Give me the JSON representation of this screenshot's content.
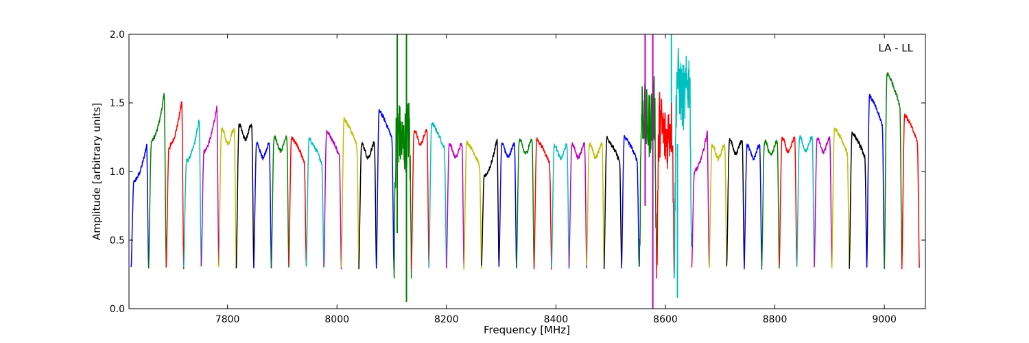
{
  "chart_data": {
    "type": "line",
    "title": "",
    "annotation": "LA - LL",
    "xlabel": "Frequency [MHz]",
    "ylabel": "Amplitude [arbitrary units]",
    "xlim": [
      7620,
      9075
    ],
    "ylim": [
      0.0,
      2.0
    ],
    "xticks": [
      7800,
      8000,
      8200,
      8400,
      8600,
      8800,
      9000
    ],
    "xtick_labels": [
      "7800",
      "8000",
      "8200",
      "8400",
      "8600",
      "8800",
      "9000"
    ],
    "yticks": [
      0.0,
      0.5,
      1.0,
      1.5,
      2.0
    ],
    "ytick_labels": [
      "0.0",
      "0.5",
      "1.0",
      "1.5",
      "2.0"
    ],
    "grid": false,
    "legend": "none",
    "colors": [
      "#0000ff",
      "#007f00",
      "#ff0000",
      "#00bfbf",
      "#bf00bf",
      "#bfbf00",
      "#000000"
    ],
    "channel_width_mhz": 32,
    "first_channel_start_mhz": 7624,
    "channels": [
      {
        "start": 7624,
        "peak": 1.28,
        "shape": "rising"
      },
      {
        "start": 7656,
        "peak": 1.68,
        "shape": "rising"
      },
      {
        "start": 7688,
        "peak": 1.62,
        "shape": "rising"
      },
      {
        "start": 7720,
        "peak": 1.48,
        "shape": "rising"
      },
      {
        "start": 7752,
        "peak": 1.58,
        "shape": "rising"
      },
      {
        "start": 7784,
        "peak": 1.31,
        "shape": "flat"
      },
      {
        "start": 7816,
        "peak": 1.34,
        "shape": "flat"
      },
      {
        "start": 7848,
        "peak": 1.2,
        "shape": "flat"
      },
      {
        "start": 7880,
        "peak": 1.25,
        "shape": "flat"
      },
      {
        "start": 7912,
        "peak": 1.26,
        "shape": "falling"
      },
      {
        "start": 7944,
        "peak": 1.25,
        "shape": "falling"
      },
      {
        "start": 7976,
        "peak": 1.31,
        "shape": "falling"
      },
      {
        "start": 8008,
        "peak": 1.4,
        "shape": "falling"
      },
      {
        "start": 8040,
        "peak": 1.2,
        "shape": "flat"
      },
      {
        "start": 8072,
        "peak": 1.46,
        "shape": "falling"
      },
      {
        "start": 8104,
        "peak": 1.3,
        "shape": "noisy"
      },
      {
        "start": 8136,
        "peak": 1.3,
        "shape": "flat"
      },
      {
        "start": 8168,
        "peak": 1.37,
        "shape": "falling"
      },
      {
        "start": 8200,
        "peak": 1.2,
        "shape": "flat"
      },
      {
        "start": 8232,
        "peak": 1.23,
        "shape": "falling"
      },
      {
        "start": 8264,
        "peak": 1.33,
        "shape": "rising"
      },
      {
        "start": 8296,
        "peak": 1.2,
        "shape": "flat"
      },
      {
        "start": 8328,
        "peak": 1.23,
        "shape": "flat"
      },
      {
        "start": 8360,
        "peak": 1.25,
        "shape": "falling"
      },
      {
        "start": 8392,
        "peak": 1.19,
        "shape": "flat"
      },
      {
        "start": 8424,
        "peak": 1.2,
        "shape": "flat"
      },
      {
        "start": 8456,
        "peak": 1.2,
        "shape": "flat"
      },
      {
        "start": 8488,
        "peak": 1.26,
        "shape": "falling"
      },
      {
        "start": 8520,
        "peak": 1.27,
        "shape": "falling"
      },
      {
        "start": 8552,
        "peak": 1.45,
        "shape": "noisy"
      },
      {
        "start": 8584,
        "peak": 1.35,
        "shape": "noisy"
      },
      {
        "start": 8616,
        "peak": 1.67,
        "shape": "noisy"
      },
      {
        "start": 8648,
        "peak": 1.38,
        "shape": "rising"
      },
      {
        "start": 8680,
        "peak": 1.19,
        "shape": "flat"
      },
      {
        "start": 8712,
        "peak": 1.23,
        "shape": "flat"
      },
      {
        "start": 8744,
        "peak": 1.19,
        "shape": "flat"
      },
      {
        "start": 8776,
        "peak": 1.22,
        "shape": "flat"
      },
      {
        "start": 8808,
        "peak": 1.24,
        "shape": "flat"
      },
      {
        "start": 8840,
        "peak": 1.25,
        "shape": "flat"
      },
      {
        "start": 8872,
        "peak": 1.24,
        "shape": "flat"
      },
      {
        "start": 8904,
        "peak": 1.33,
        "shape": "falling"
      },
      {
        "start": 8936,
        "peak": 1.3,
        "shape": "falling"
      },
      {
        "start": 8968,
        "peak": 1.57,
        "shape": "falling"
      },
      {
        "start": 9000,
        "peak": 1.74,
        "shape": "falling"
      },
      {
        "start": 9032,
        "peak": 1.43,
        "shape": "falling"
      }
    ],
    "spikes": [
      {
        "x": 8110,
        "color_index": 1,
        "low": 0.55,
        "high": 2.0
      },
      {
        "x": 8127,
        "color_index": 1,
        "low": 0.05,
        "high": 2.0
      },
      {
        "x": 8563,
        "color_index": 4,
        "low": 0.75,
        "high": 2.0
      },
      {
        "x": 8577,
        "color_index": 4,
        "low": 0.0,
        "high": 2.0
      },
      {
        "x": 8611,
        "color_index": 3,
        "low": 1.5,
        "high": 2.0
      },
      {
        "x": 8622,
        "color_index": 3,
        "low": 0.08,
        "high": 1.2
      }
    ]
  }
}
